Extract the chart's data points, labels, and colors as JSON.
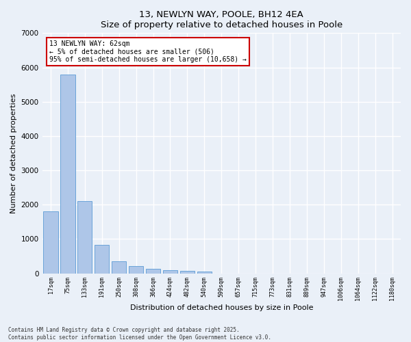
{
  "title": "13, NEWLYN WAY, POOLE, BH12 4EA",
  "subtitle": "Size of property relative to detached houses in Poole",
  "xlabel": "Distribution of detached houses by size in Poole",
  "ylabel": "Number of detached properties",
  "categories": [
    "17sqm",
    "75sqm",
    "133sqm",
    "191sqm",
    "250sqm",
    "308sqm",
    "366sqm",
    "424sqm",
    "482sqm",
    "540sqm",
    "599sqm",
    "657sqm",
    "715sqm",
    "773sqm",
    "831sqm",
    "889sqm",
    "947sqm",
    "1006sqm",
    "1064sqm",
    "1122sqm",
    "1180sqm"
  ],
  "values": [
    1800,
    5800,
    2100,
    820,
    360,
    210,
    130,
    100,
    80,
    55,
    0,
    0,
    0,
    0,
    0,
    0,
    0,
    0,
    0,
    0,
    0
  ],
  "bar_color": "#aec6e8",
  "bar_edge_color": "#5b9bd5",
  "annotation_text": "13 NEWLYN WAY: 62sqm\n← 5% of detached houses are smaller (506)\n95% of semi-detached houses are larger (10,658) →",
  "annotation_box_color": "#ffffff",
  "annotation_box_edge": "#cc0000",
  "property_bar_index": 1,
  "ylim": [
    0,
    7000
  ],
  "yticks": [
    0,
    1000,
    2000,
    3000,
    4000,
    5000,
    6000,
    7000
  ],
  "background_color": "#eaf0f8",
  "plot_background": "#eaf0f8",
  "grid_color": "#ffffff",
  "footer": "Contains HM Land Registry data © Crown copyright and database right 2025.\nContains public sector information licensed under the Open Government Licence v3.0."
}
